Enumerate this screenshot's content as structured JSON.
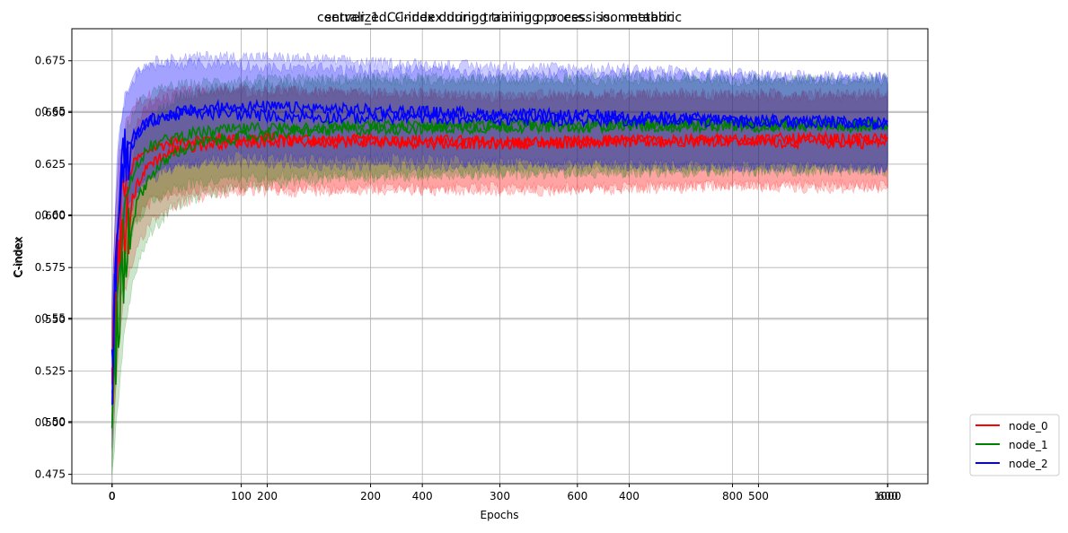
{
  "chart_data": {
    "type": "line",
    "title_a": "centralized. C-index during training process. iso. metabric",
    "title_b": "server_1. C-index during training process. iso. metabric",
    "xlabel": "Epochs",
    "ylabel": "C-index",
    "grid": true,
    "legend_position": "right, outside plot",
    "axes_a": {
      "xlim": [
        -52,
        1052
      ],
      "ylim": [
        0.47,
        0.69
      ],
      "xticks": [
        0,
        200,
        400,
        600,
        800,
        1000
      ],
      "yticks": [
        0.5,
        0.55,
        0.6,
        0.65
      ]
    },
    "axes_b": {
      "xlim": [
        -31,
        631
      ],
      "ylim": [
        0.4705,
        0.6905
      ],
      "xticks": [
        0,
        100,
        200,
        300,
        400,
        500,
        600
      ],
      "yticks": [
        0.475,
        0.5,
        0.525,
        0.55,
        0.575,
        0.6,
        0.625,
        0.65,
        0.675
      ]
    },
    "series": [
      {
        "name": "node_0",
        "color": "#ff0000",
        "runs": [
          {
            "x": [
              0,
              5,
              10,
              20,
              30,
              50,
              75,
              100,
              150,
              200,
              300,
              400,
              500,
              600,
              700,
              800,
              900,
              1000
            ],
            "mean": [
              0.525,
              0.575,
              0.598,
              0.618,
              0.626,
              0.632,
              0.635,
              0.636,
              0.637,
              0.637,
              0.636,
              0.636,
              0.635,
              0.635,
              0.636,
              0.636,
              0.635,
              0.635
            ],
            "std": [
              0.03,
              0.035,
              0.032,
              0.03,
              0.028,
              0.026,
              0.025,
              0.024,
              0.024,
              0.023,
              0.023,
              0.023,
              0.022,
              0.022,
              0.022,
              0.022,
              0.022,
              0.022
            ]
          },
          {
            "x": [
              0,
              5,
              10,
              20,
              30,
              50,
              75,
              100,
              150,
              200,
              300,
              400,
              500,
              600
            ],
            "mean": [
              0.515,
              0.57,
              0.596,
              0.616,
              0.626,
              0.632,
              0.635,
              0.636,
              0.636,
              0.636,
              0.635,
              0.636,
              0.637,
              0.637
            ],
            "std": [
              0.03,
              0.035,
              0.032,
              0.03,
              0.028,
              0.026,
              0.025,
              0.024,
              0.024,
              0.023,
              0.023,
              0.023,
              0.022,
              0.022
            ]
          }
        ]
      },
      {
        "name": "node_1",
        "color": "#008000",
        "runs": [
          {
            "x": [
              0,
              5,
              10,
              20,
              30,
              50,
              75,
              100,
              150,
              200,
              300,
              400,
              500,
              600,
              700,
              800,
              900,
              1000
            ],
            "mean": [
              0.51,
              0.555,
              0.588,
              0.613,
              0.624,
              0.633,
              0.637,
              0.639,
              0.641,
              0.642,
              0.643,
              0.643,
              0.643,
              0.643,
              0.643,
              0.643,
              0.643,
              0.643
            ],
            "std": [
              0.03,
              0.035,
              0.032,
              0.03,
              0.028,
              0.026,
              0.025,
              0.024,
              0.024,
              0.023,
              0.023,
              0.023,
              0.022,
              0.022,
              0.022,
              0.022,
              0.022,
              0.022
            ]
          },
          {
            "x": [
              0,
              5,
              10,
              20,
              30,
              50,
              75,
              100,
              150,
              200,
              300,
              400,
              500,
              600
            ],
            "mean": [
              0.505,
              0.545,
              0.58,
              0.608,
              0.62,
              0.631,
              0.636,
              0.638,
              0.641,
              0.642,
              0.643,
              0.644,
              0.644,
              0.644
            ],
            "std": [
              0.03,
              0.035,
              0.032,
              0.03,
              0.028,
              0.026,
              0.025,
              0.024,
              0.024,
              0.023,
              0.023,
              0.023,
              0.022,
              0.022
            ]
          }
        ]
      },
      {
        "name": "node_2",
        "color": "#0000ff",
        "runs": [
          {
            "x": [
              0,
              5,
              10,
              20,
              30,
              50,
              75,
              100,
              150,
              200,
              300,
              400,
              500,
              600,
              700,
              800,
              900,
              1000
            ],
            "mean": [
              0.52,
              0.585,
              0.612,
              0.632,
              0.64,
              0.646,
              0.648,
              0.649,
              0.649,
              0.648,
              0.647,
              0.647,
              0.646,
              0.646,
              0.646,
              0.645,
              0.645,
              0.644
            ],
            "std": [
              0.03,
              0.035,
              0.032,
              0.03,
              0.028,
              0.026,
              0.025,
              0.024,
              0.024,
              0.023,
              0.023,
              0.023,
              0.022,
              0.022,
              0.022,
              0.022,
              0.022,
              0.022
            ]
          },
          {
            "x": [
              0,
              5,
              10,
              20,
              30,
              50,
              75,
              100,
              150,
              200,
              300,
              400,
              500,
              600
            ],
            "mean": [
              0.53,
              0.6,
              0.625,
              0.64,
              0.646,
              0.65,
              0.652,
              0.653,
              0.652,
              0.651,
              0.649,
              0.648,
              0.646,
              0.645
            ],
            "std": [
              0.03,
              0.035,
              0.032,
              0.03,
              0.028,
              0.026,
              0.025,
              0.024,
              0.024,
              0.023,
              0.023,
              0.023,
              0.022,
              0.022
            ]
          }
        ]
      }
    ]
  }
}
